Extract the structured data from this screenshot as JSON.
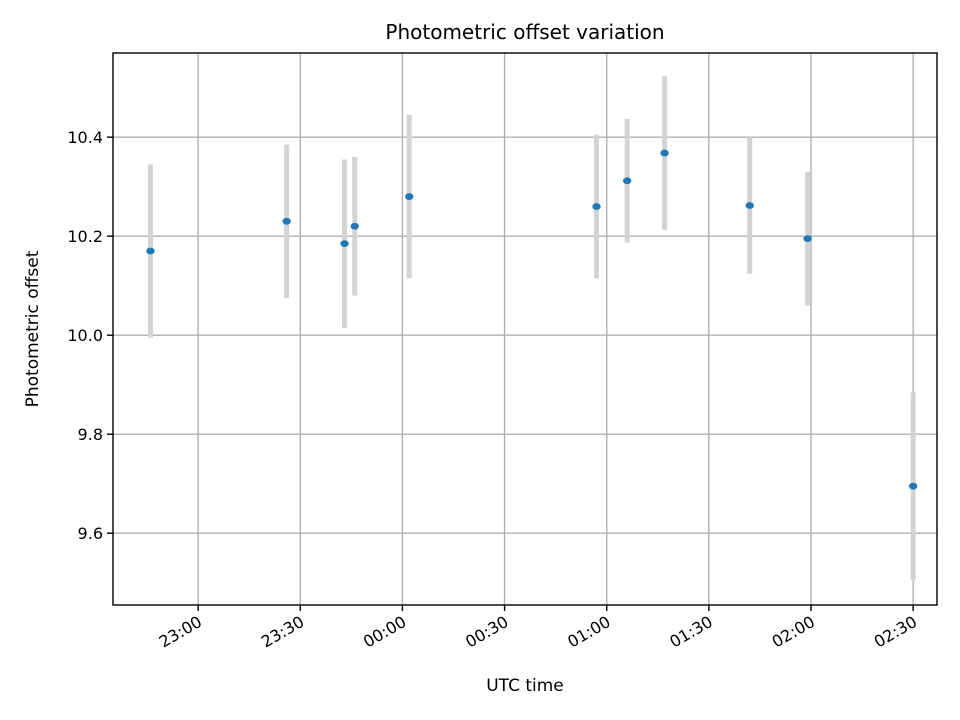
{
  "chart_data": {
    "type": "scatter",
    "title": "Photometric offset variation",
    "xlabel": "UTC time",
    "ylabel": "Photometric offset",
    "x_ticks": [
      "23:00",
      "23:30",
      "00:00",
      "00:30",
      "01:00",
      "01:30",
      "02:00",
      "02:30"
    ],
    "y_ticks": [
      "9.6",
      "9.8",
      "10.0",
      "10.2",
      "10.4"
    ],
    "xlim": [
      "22:35",
      "02:37"
    ],
    "ylim": [
      9.455,
      10.57
    ],
    "grid": true,
    "point_color": "#1f77b4",
    "errorbar_color": "#d3d3d3",
    "points": [
      {
        "x": "22:46",
        "y": 10.17,
        "err": 0.175
      },
      {
        "x": "23:26",
        "y": 10.23,
        "err": 0.155
      },
      {
        "x": "23:43",
        "y": 10.185,
        "err": 0.17
      },
      {
        "x": "23:46",
        "y": 10.22,
        "err": 0.14
      },
      {
        "x": "00:02",
        "y": 10.28,
        "err": 0.165
      },
      {
        "x": "00:57",
        "y": 10.26,
        "err": 0.145
      },
      {
        "x": "01:06",
        "y": 10.312,
        "err": 0.125
      },
      {
        "x": "01:17",
        "y": 10.368,
        "err": 0.155
      },
      {
        "x": "01:42",
        "y": 10.262,
        "err": 0.138
      },
      {
        "x": "01:59",
        "y": 10.195,
        "err": 0.135
      },
      {
        "x": "02:30",
        "y": 9.695,
        "err": 0.19
      }
    ]
  }
}
